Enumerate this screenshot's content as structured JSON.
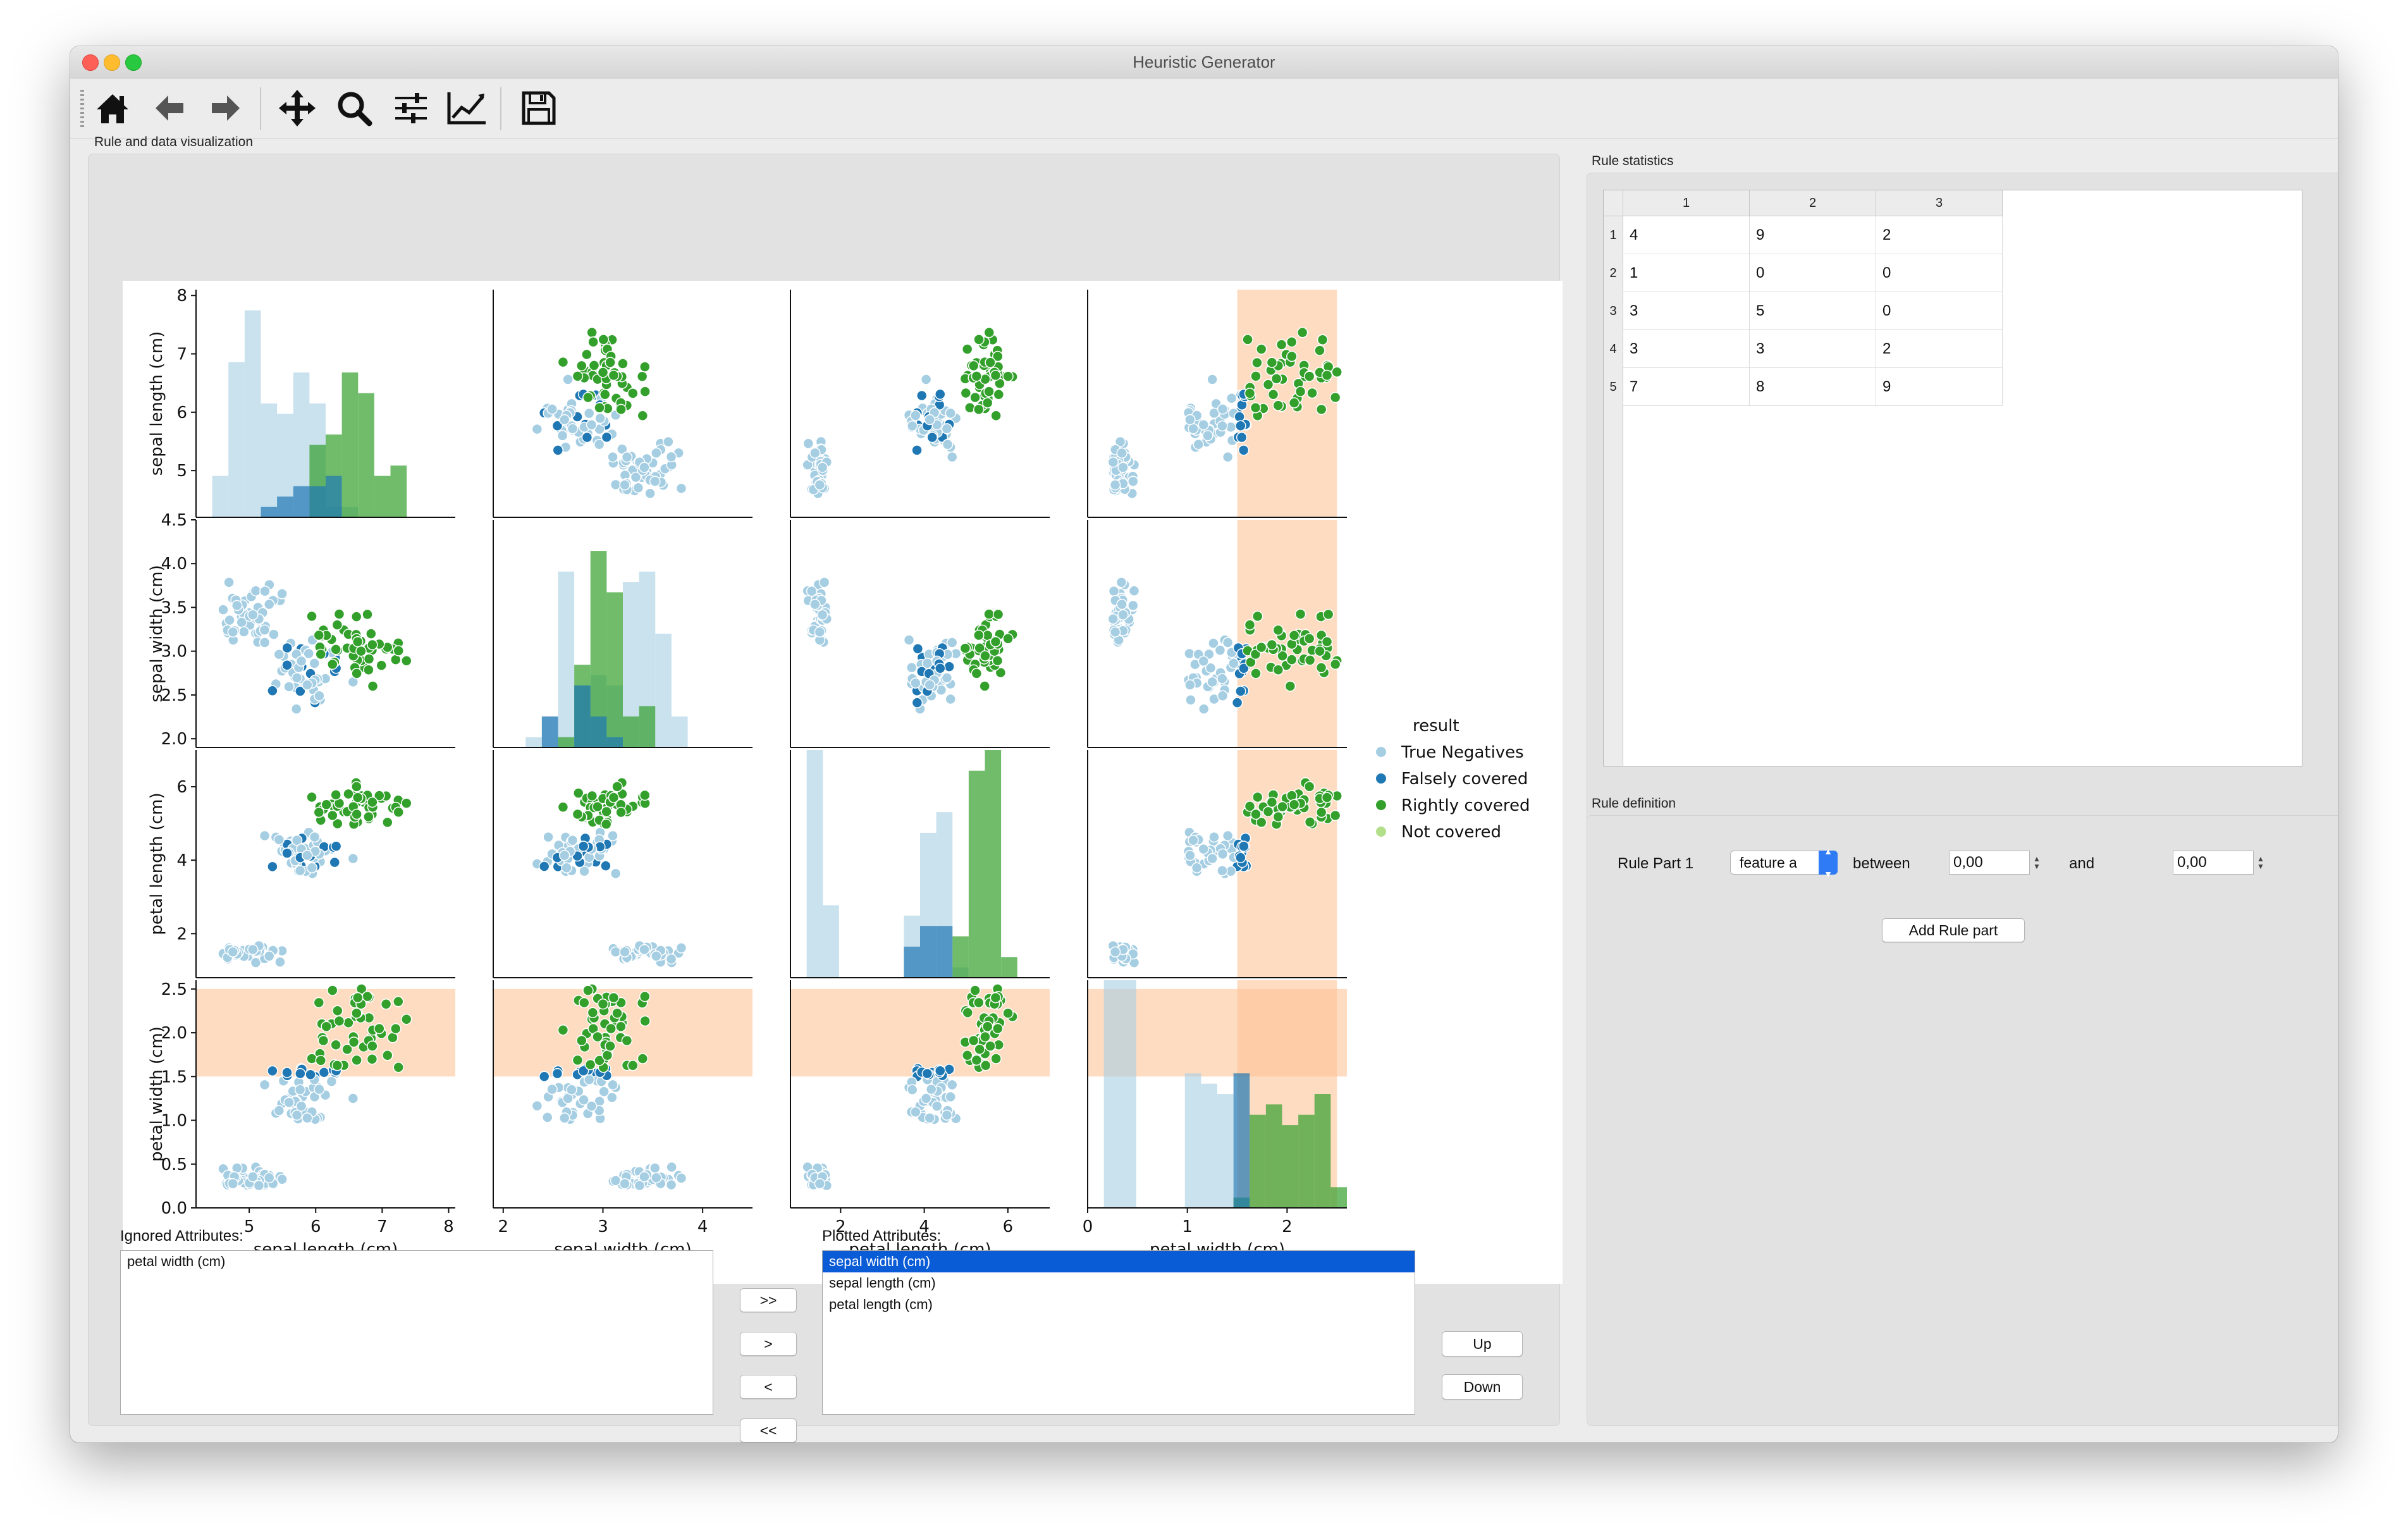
{
  "window": {
    "title": "Heuristic Generator"
  },
  "toolbar": {
    "icons": [
      "home-icon",
      "back-arrow-icon",
      "forward-arrow-icon",
      "pan-icon",
      "zoom-icon",
      "configure-subplots-icon",
      "edit-axes-icon",
      "save-icon"
    ]
  },
  "viz": {
    "group_title": "Rule and data visualization",
    "ignored_label": "Ignored Attributes:",
    "ignored_items": [
      "petal width (cm)"
    ],
    "plotted_label": "Plotted Attributes:",
    "plotted_items": [
      "sepal width (cm)",
      "sepal length (cm)",
      "petal length (cm)"
    ],
    "buttons": {
      "all_right": ">>",
      "right": ">",
      "left": "<",
      "all_left": "<<",
      "up": "Up",
      "down": "Down"
    }
  },
  "stats": {
    "group_title": "Rule statistics",
    "columns": [
      "1",
      "2",
      "3"
    ],
    "row_headers": [
      "1",
      "2",
      "3",
      "4",
      "5"
    ],
    "rows": [
      [
        "4",
        "9",
        "2"
      ],
      [
        "1",
        "0",
        "0"
      ],
      [
        "3",
        "5",
        "0"
      ],
      [
        "3",
        "3",
        "2"
      ],
      [
        "7",
        "8",
        "9"
      ]
    ]
  },
  "rule": {
    "group_title": "Rule definition",
    "part_label": "Rule Part 1",
    "feature_value": "feature a",
    "between_label": "between",
    "from_value": "0,00",
    "and_label": "and",
    "to_value": "0,00",
    "add_button": "Add Rule part"
  },
  "chart_data": {
    "type": "scatter",
    "title": "",
    "variables": [
      "sepal length (cm)",
      "sepal width (cm)",
      "petal length (cm)",
      "petal width (cm)"
    ],
    "axis_ranges": {
      "sepal length (cm)": [
        4.2,
        8.1
      ],
      "sepal width (cm)": [
        1.9,
        4.5
      ],
      "petal length (cm)": [
        0.8,
        7.0
      ],
      "petal width (cm)": [
        0.0,
        2.6
      ]
    },
    "ticks": {
      "sepal length (cm)": [
        "5",
        "6",
        "7",
        "8"
      ],
      "sepal width (cm)": [
        "2.0",
        "2.5",
        "3.0",
        "3.5",
        "4.0",
        "4.5"
      ],
      "sepal width x": [
        "2",
        "3",
        "4"
      ],
      "petal length (cm)": [
        "2",
        "4",
        "6"
      ],
      "petal width (cm)": [
        "0.0",
        "0.5",
        "1.0",
        "1.5",
        "2.0",
        "2.5"
      ],
      "petal width x": [
        "0",
        "1",
        "2"
      ]
    },
    "legend": {
      "title": "result",
      "placement": "right",
      "entries": [
        {
          "name": "True Negatives",
          "color": "#a6cee3"
        },
        {
          "name": "Falsely covered",
          "color": "#1f78b4"
        },
        {
          "name": "Rightly covered",
          "color": "#33a02c"
        },
        {
          "name": "Not covered",
          "color": "#b2df8a"
        }
      ]
    },
    "rule_highlight": {
      "variable": "petal width (cm)",
      "range": [
        1.5,
        2.5
      ],
      "color": "#fdbf8f"
    }
  }
}
